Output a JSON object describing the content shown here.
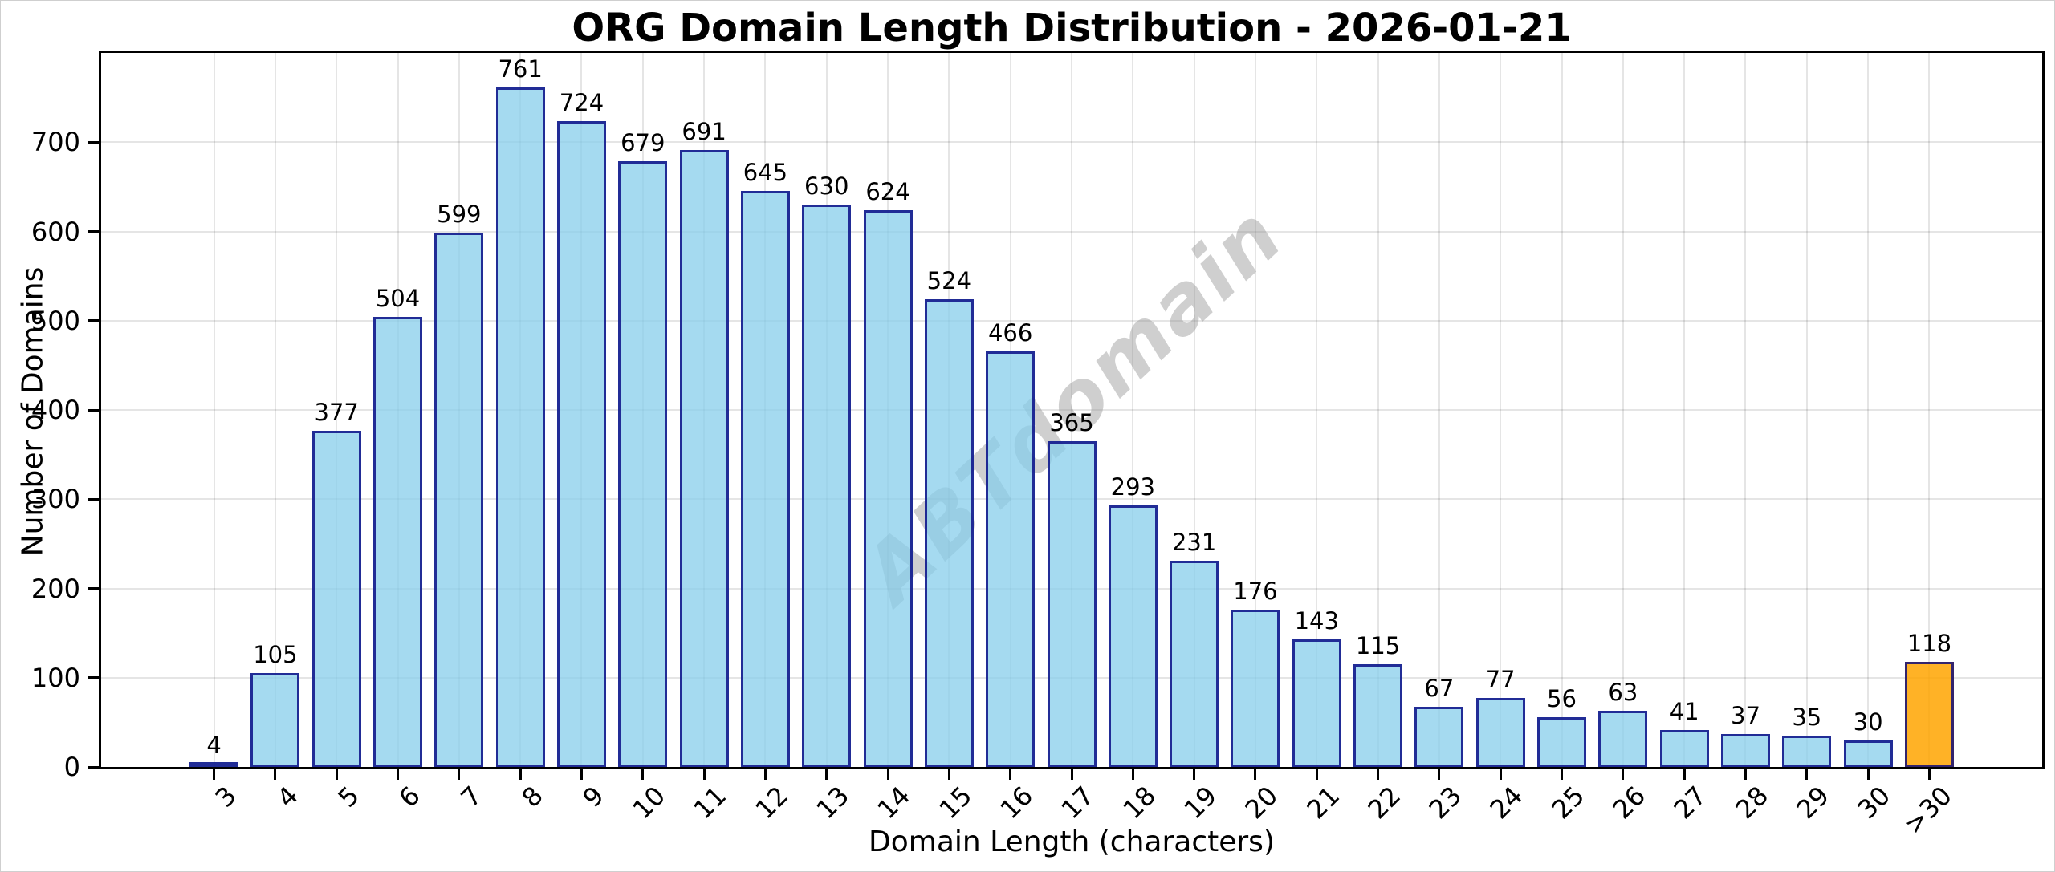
{
  "figure": {
    "title": "ORG Domain Length Distribution - 2026-01-21",
    "watermark": "ABTdomain"
  },
  "chart_data": {
    "type": "bar",
    "title": "ORG Domain Length Distribution - 2026-01-21",
    "xlabel": "Domain Length (characters)",
    "ylabel": "Number of Domains",
    "categories": [
      "3",
      "4",
      "5",
      "6",
      "7",
      "8",
      "9",
      "10",
      "11",
      "12",
      "13",
      "14",
      "15",
      "16",
      "17",
      "18",
      "19",
      "20",
      "21",
      "22",
      "23",
      "24",
      "25",
      "26",
      "27",
      "28",
      "29",
      "30",
      ">30"
    ],
    "values": [
      4,
      105,
      377,
      504,
      599,
      761,
      724,
      679,
      691,
      645,
      630,
      624,
      524,
      466,
      365,
      293,
      231,
      176,
      143,
      115,
      67,
      77,
      56,
      63,
      41,
      37,
      35,
      30,
      118
    ],
    "bar_value_labels": [
      "4",
      "105",
      "377",
      "504",
      "599",
      "761",
      "724",
      "679",
      "691",
      "645",
      "630",
      "624",
      "524",
      "466",
      "365",
      "293",
      "231",
      "176",
      "143",
      "115",
      "67",
      "77",
      "56",
      "63",
      "41",
      "37",
      "35",
      "30",
      "118"
    ],
    "ylim": [
      0,
      800
    ],
    "yticks": [
      0,
      100,
      200,
      300,
      400,
      500,
      600,
      700
    ],
    "x_tick_rotation": 45,
    "grid": "on",
    "legend": "none",
    "highlight_index": 28,
    "watermark": "ABTdomain",
    "colors": {
      "bar_fill": "#87CEEB",
      "bar_edge": "#000080",
      "highlight_fill": "#FFA500",
      "bar_alpha": "0.75",
      "grid_color": "#E5E5E5",
      "watermark_color": "#CCCCCC",
      "spine_color": "#000000"
    }
  }
}
